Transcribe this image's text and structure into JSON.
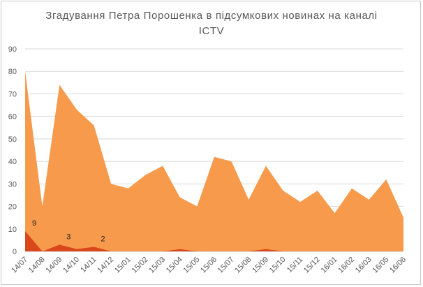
{
  "chart_data": {
    "type": "area",
    "title_line1": "Згадування Петра Порошенка в підсумкових новинах на каналі",
    "title_line2": "ICTV",
    "xlabel": "",
    "ylabel": "",
    "ylim": [
      0,
      90
    ],
    "yticks": [
      0,
      10,
      20,
      30,
      40,
      50,
      60,
      70,
      80,
      90
    ],
    "grid": true,
    "legend": "none",
    "categories": [
      "14/07",
      "14/08",
      "14/09",
      "14/10",
      "14/11",
      "14/12",
      "15/01",
      "15/02",
      "15/03",
      "15/04",
      "15/05",
      "15/06",
      "15/07",
      "15/08",
      "15/09",
      "15/10",
      "15/11",
      "15/12",
      "16/01",
      "16/02",
      "16/03",
      "16/05",
      "16/06"
    ],
    "series": [
      {
        "color": "#f79a4b",
        "values": [
          80,
          20,
          74,
          63,
          56,
          30,
          28,
          34,
          38,
          24,
          20,
          42,
          40,
          23,
          38,
          27,
          22,
          27,
          17,
          28,
          23,
          32,
          15
        ]
      },
      {
        "color": "#d9471a",
        "values": [
          9,
          0,
          3,
          1,
          2,
          0,
          0,
          0,
          0,
          1,
          0,
          0,
          0,
          0,
          1,
          0,
          0,
          0,
          0,
          0,
          0,
          0,
          0
        ]
      }
    ],
    "data_labels": [
      {
        "index": 0,
        "text": "9"
      },
      {
        "index": 2,
        "text": "3"
      },
      {
        "index": 4,
        "text": "2"
      }
    ]
  }
}
